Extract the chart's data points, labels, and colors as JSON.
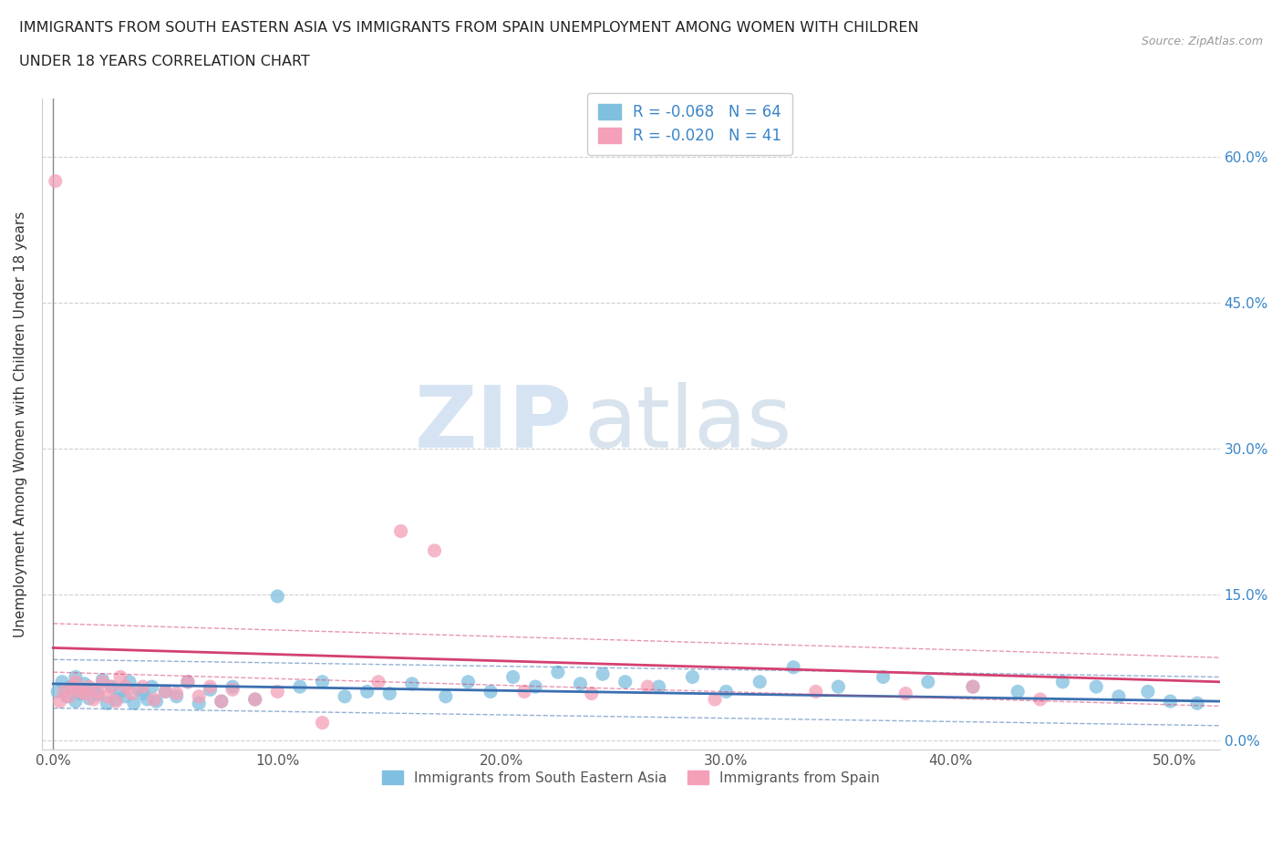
{
  "title_line1": "IMMIGRANTS FROM SOUTH EASTERN ASIA VS IMMIGRANTS FROM SPAIN UNEMPLOYMENT AMONG WOMEN WITH CHILDREN",
  "title_line2": "UNDER 18 YEARS CORRELATION CHART",
  "source": "Source: ZipAtlas.com",
  "ylabel": "Unemployment Among Women with Children Under 18 years",
  "xlim": [
    -0.005,
    0.52
  ],
  "ylim": [
    -0.01,
    0.66
  ],
  "xtick_labels": [
    "0.0%",
    "10.0%",
    "20.0%",
    "30.0%",
    "40.0%",
    "50.0%"
  ],
  "xtick_vals": [
    0.0,
    0.1,
    0.2,
    0.3,
    0.4,
    0.5
  ],
  "ytick_labels": [
    "0.0%",
    "15.0%",
    "30.0%",
    "45.0%",
    "60.0%"
  ],
  "ytick_vals": [
    0.0,
    0.15,
    0.3,
    0.45,
    0.6
  ],
  "blue_color": "#7fbfdf",
  "pink_color": "#f4a0b8",
  "blue_line_color": "#3a6fb0",
  "pink_line_color": "#d44070",
  "blue_R": -0.068,
  "blue_N": 64,
  "pink_R": -0.02,
  "pink_N": 41,
  "legend_label_blue": "Immigrants from South Eastern Asia",
  "legend_label_pink": "Immigrants from Spain",
  "watermark_zip": "ZIP",
  "watermark_atlas": "atlas",
  "background_color": "#ffffff",
  "grid_color": "#d0d0d0",
  "blue_scatter_x": [
    0.002,
    0.004,
    0.006,
    0.008,
    0.01,
    0.01,
    0.012,
    0.014,
    0.016,
    0.018,
    0.02,
    0.022,
    0.024,
    0.026,
    0.028,
    0.03,
    0.032,
    0.034,
    0.036,
    0.038,
    0.04,
    0.042,
    0.044,
    0.046,
    0.05,
    0.055,
    0.06,
    0.065,
    0.07,
    0.075,
    0.08,
    0.09,
    0.1,
    0.11,
    0.12,
    0.13,
    0.14,
    0.15,
    0.16,
    0.175,
    0.185,
    0.195,
    0.205,
    0.215,
    0.225,
    0.235,
    0.245,
    0.255,
    0.27,
    0.285,
    0.3,
    0.315,
    0.33,
    0.35,
    0.37,
    0.39,
    0.41,
    0.43,
    0.45,
    0.465,
    0.475,
    0.488,
    0.498,
    0.51
  ],
  "blue_scatter_y": [
    0.05,
    0.06,
    0.045,
    0.055,
    0.04,
    0.065,
    0.048,
    0.058,
    0.043,
    0.052,
    0.047,
    0.062,
    0.038,
    0.055,
    0.042,
    0.05,
    0.045,
    0.06,
    0.038,
    0.052,
    0.048,
    0.042,
    0.055,
    0.04,
    0.05,
    0.045,
    0.06,
    0.038,
    0.052,
    0.04,
    0.055,
    0.042,
    0.148,
    0.055,
    0.06,
    0.045,
    0.05,
    0.048,
    0.058,
    0.045,
    0.06,
    0.05,
    0.065,
    0.055,
    0.07,
    0.058,
    0.068,
    0.06,
    0.055,
    0.065,
    0.05,
    0.06,
    0.075,
    0.055,
    0.065,
    0.06,
    0.055,
    0.05,
    0.06,
    0.055,
    0.045,
    0.05,
    0.04,
    0.038
  ],
  "pink_scatter_x": [
    0.001,
    0.003,
    0.005,
    0.007,
    0.009,
    0.01,
    0.012,
    0.014,
    0.016,
    0.018,
    0.02,
    0.022,
    0.024,
    0.026,
    0.028,
    0.03,
    0.032,
    0.035,
    0.04,
    0.045,
    0.05,
    0.055,
    0.06,
    0.065,
    0.07,
    0.075,
    0.08,
    0.09,
    0.1,
    0.12,
    0.145,
    0.155,
    0.17,
    0.21,
    0.24,
    0.265,
    0.295,
    0.34,
    0.38,
    0.41,
    0.44
  ],
  "pink_scatter_y": [
    0.575,
    0.04,
    0.05,
    0.045,
    0.055,
    0.06,
    0.05,
    0.048,
    0.055,
    0.042,
    0.05,
    0.06,
    0.045,
    0.055,
    0.04,
    0.065,
    0.055,
    0.048,
    0.055,
    0.042,
    0.05,
    0.048,
    0.06,
    0.045,
    0.055,
    0.04,
    0.052,
    0.042,
    0.05,
    0.018,
    0.06,
    0.215,
    0.195,
    0.05,
    0.048,
    0.055,
    0.042,
    0.05,
    0.048,
    0.055,
    0.042
  ]
}
